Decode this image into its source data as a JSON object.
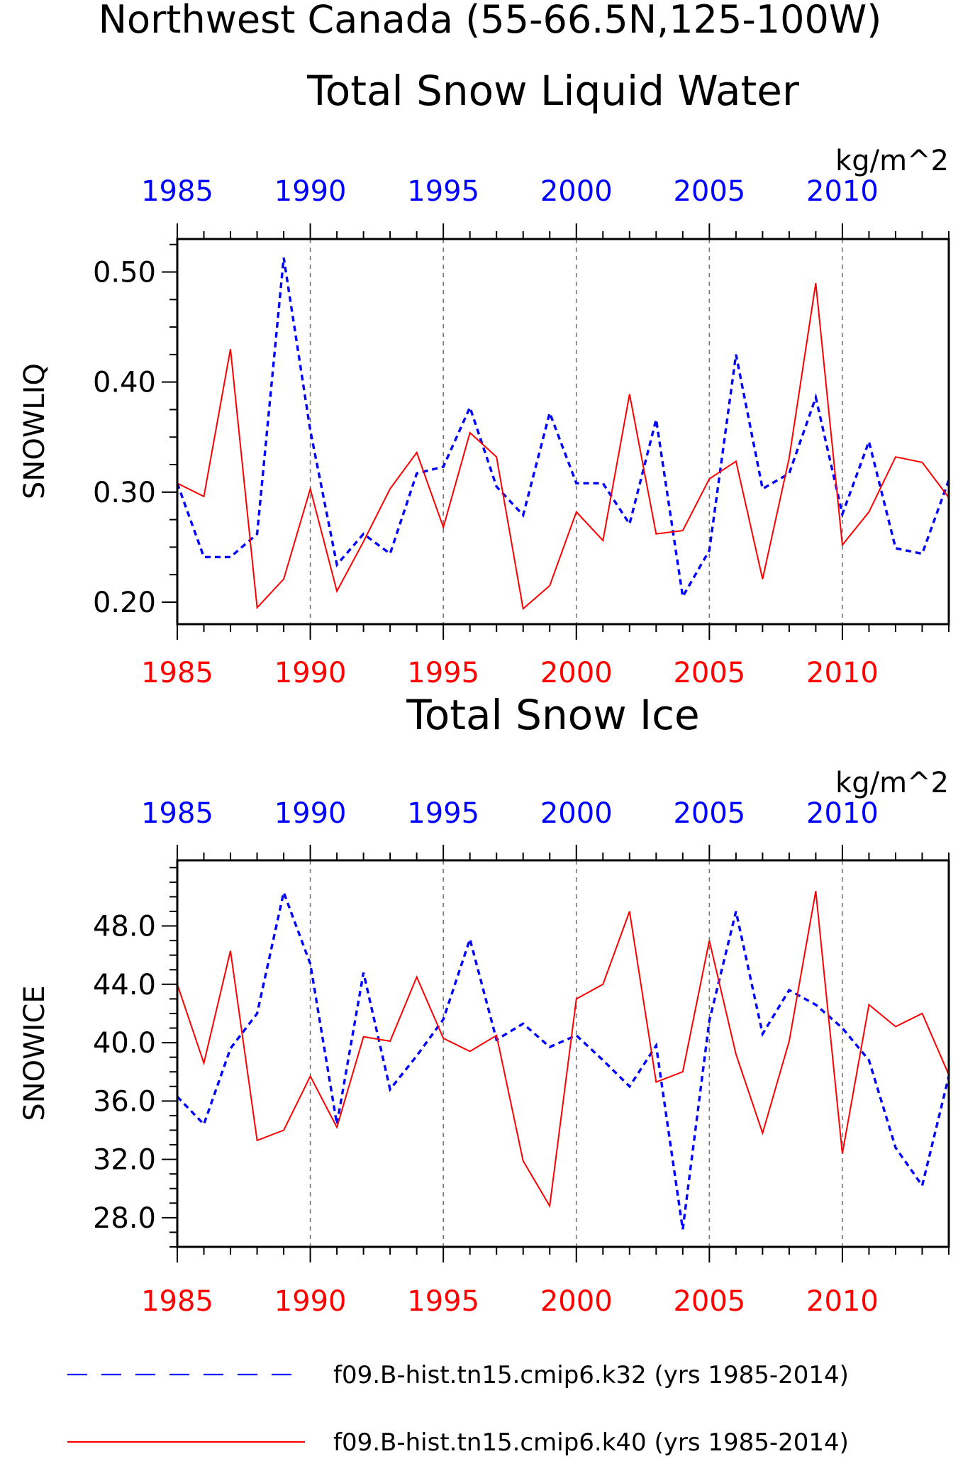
{
  "title": "Northwest Canada (55-66.5N,125-100W)",
  "colors": {
    "k32": "#0000ff",
    "k40": "#ff0000",
    "axis": "#000000",
    "grid": "#777777"
  },
  "chart_data": [
    {
      "type": "line",
      "title": "Total Snow Liquid Water",
      "ylabel": "SNOWLIQ",
      "units": "kg/m^2",
      "xlim": [
        1985,
        2014
      ],
      "ylim": [
        0.18,
        0.53
      ],
      "yticks": [
        "0.20",
        "0.30",
        "0.40",
        "0.50"
      ],
      "xticks": [
        "1985",
        "1990",
        "1995",
        "2000",
        "2005",
        "2010"
      ],
      "grid": "vertical dashed at 5-year ticks",
      "x": [
        1985,
        1986,
        1987,
        1988,
        1989,
        1990,
        1991,
        1992,
        1993,
        1994,
        1995,
        1996,
        1997,
        1998,
        1999,
        2000,
        2001,
        2002,
        2003,
        2004,
        2005,
        2006,
        2007,
        2008,
        2009,
        2010,
        2011,
        2012,
        2013,
        2014
      ],
      "series": [
        {
          "name": "f09.B-hist.tn15.cmip6.k32 (yrs 1985-2014)",
          "style": "dashed",
          "values": [
            0.308,
            0.241,
            0.241,
            0.262,
            0.513,
            0.356,
            0.234,
            0.262,
            0.244,
            0.317,
            0.323,
            0.377,
            0.305,
            0.279,
            0.372,
            0.308,
            0.308,
            0.271,
            0.366,
            0.205,
            0.247,
            0.425,
            0.303,
            0.317,
            0.386,
            0.28,
            0.346,
            0.249,
            0.244,
            0.311
          ]
        },
        {
          "name": "f09.B-hist.tn15.cmip6.k40 (yrs 1985-2014)",
          "style": "solid",
          "values": [
            0.308,
            0.296,
            0.43,
            0.195,
            0.221,
            0.303,
            0.21,
            0.255,
            0.303,
            0.336,
            0.268,
            0.354,
            0.332,
            0.194,
            0.215,
            0.282,
            0.256,
            0.389,
            0.262,
            0.265,
            0.312,
            0.328,
            0.221,
            0.331,
            0.49,
            0.252,
            0.282,
            0.332,
            0.327,
            0.295
          ]
        }
      ]
    },
    {
      "type": "line",
      "title": "Total Snow Ice",
      "ylabel": "SNOWICE",
      "units": "kg/m^2",
      "xlim": [
        1985,
        2014
      ],
      "ylim": [
        26,
        52.5
      ],
      "yticks": [
        "28.0",
        "32.0",
        "36.0",
        "40.0",
        "44.0",
        "48.0"
      ],
      "xticks": [
        "1985",
        "1990",
        "1995",
        "2000",
        "2005",
        "2010"
      ],
      "grid": "vertical dashed at 5-year ticks",
      "x": [
        1985,
        1986,
        1987,
        1988,
        1989,
        1990,
        1991,
        1992,
        1993,
        1994,
        1995,
        1996,
        1997,
        1998,
        1999,
        2000,
        2001,
        2002,
        2003,
        2004,
        2005,
        2006,
        2007,
        2008,
        2009,
        2010,
        2011,
        2012,
        2013,
        2014
      ],
      "series": [
        {
          "name": "f09.B-hist.tn15.cmip6.k32 (yrs 1985-2014)",
          "style": "dashed",
          "values": [
            36.3,
            34.4,
            39.6,
            42,
            50.3,
            45.4,
            34.4,
            44.8,
            36.8,
            39.1,
            41.6,
            47.1,
            40.2,
            41.3,
            39.7,
            40.5,
            38.8,
            37,
            39.8,
            27.2,
            41.5,
            49,
            40.6,
            43.6,
            42.6,
            41,
            38.8,
            32.8,
            30.2,
            37.7
          ]
        },
        {
          "name": "f09.B-hist.tn15.cmip6.k40 (yrs 1985-2014)",
          "style": "solid",
          "values": [
            44,
            38.6,
            46.3,
            33.3,
            34,
            37.7,
            34.2,
            40.4,
            40.1,
            44.5,
            40.3,
            39.4,
            40.5,
            31.9,
            28.8,
            43,
            44,
            49,
            37.3,
            38,
            47,
            39.2,
            33.8,
            40.1,
            50.4,
            32.4,
            42.6,
            41.1,
            42,
            37.8
          ]
        }
      ]
    }
  ],
  "legend": [
    {
      "label": "f09.B-hist.tn15.cmip6.k32 (yrs 1985-2014)",
      "style": "dashed",
      "color": "#0000ff"
    },
    {
      "label": "f09.B-hist.tn15.cmip6.k40 (yrs 1985-2014)",
      "style": "solid",
      "color": "#ff0000"
    }
  ]
}
